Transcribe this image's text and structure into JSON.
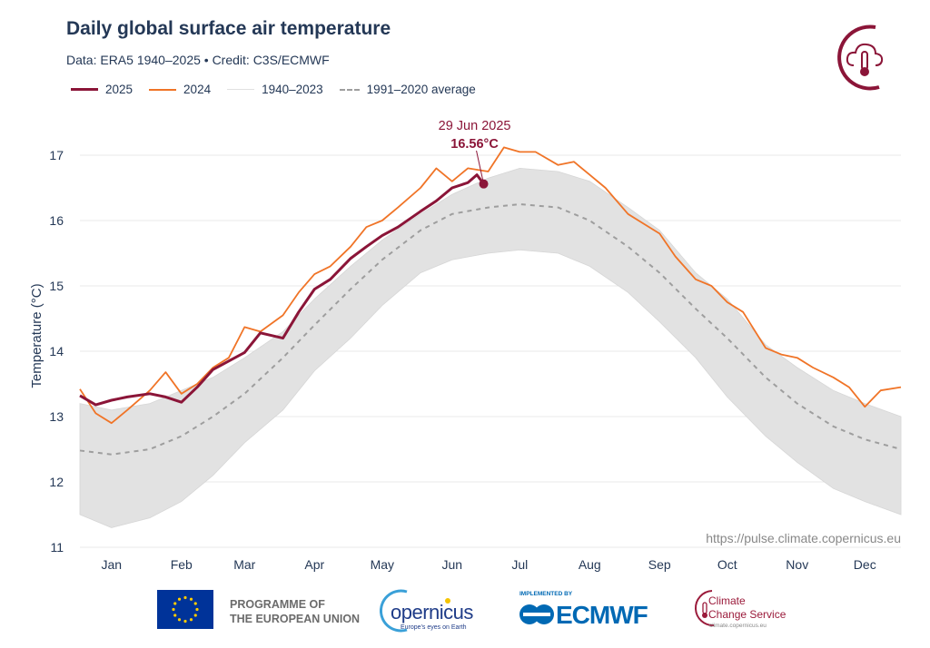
{
  "header": {
    "title": "Daily global surface air temperature",
    "subtitle": "Data: ERA5 1940–2025  •  Credit: C3S/ECMWF"
  },
  "legend": [
    {
      "label": "2025",
      "color": "#8b1538",
      "style": "solid-thick"
    },
    {
      "label": "2024",
      "color": "#f07427",
      "style": "solid"
    },
    {
      "label": "1940–2023",
      "color": "#e0e0e0",
      "style": "solid"
    },
    {
      "label": "1991–2020 average",
      "color": "#9e9e9e",
      "style": "dashed"
    }
  ],
  "source_url": "https://pulse.climate.copernicus.eu",
  "logos": {
    "eu_text_line1": "PROGRAMME OF",
    "eu_text_line2": "THE EUROPEAN UNION",
    "copernicus": "opernicus",
    "copernicus_tagline": "Europe's eyes on Earth",
    "implemented_by": "IMPLEMENTED BY",
    "ecmwf": "ECMWF",
    "c3s_line1": "Climate",
    "c3s_line2": "Change Service",
    "c3s_url": "climate.copernicus.eu"
  },
  "chart_data": {
    "type": "line",
    "title": "Daily global surface air temperature",
    "xlabel": "",
    "ylabel": "Temperature (°C)",
    "ylim": [
      11,
      17.5
    ],
    "yticks": [
      11,
      12,
      13,
      14,
      15,
      16,
      17
    ],
    "xticks": [
      "Jan",
      "Feb",
      "Mar",
      "Apr",
      "May",
      "Jun",
      "Jul",
      "Aug",
      "Sep",
      "Oct",
      "Nov",
      "Dec"
    ],
    "xrange": [
      "01-01",
      "12-31"
    ],
    "grid": "horizontal",
    "legend_placement": "top-left",
    "annotation": {
      "date_label": "29 Jun 2025",
      "value_label": "16.56°C",
      "x": "06-29",
      "y": 16.56,
      "color": "#8b1538"
    },
    "series": [
      {
        "name": "1940–2023",
        "kind": "range-band",
        "color": "#e2e2e2",
        "x": [
          "01-01",
          "01-15",
          "02-01",
          "02-15",
          "03-01",
          "03-15",
          "04-01",
          "04-15",
          "05-01",
          "05-15",
          "06-01",
          "06-15",
          "07-01",
          "07-15",
          "08-01",
          "08-15",
          "09-01",
          "09-15",
          "10-01",
          "10-15",
          "11-01",
          "11-15",
          "12-01",
          "12-15",
          "12-31"
        ],
        "lower": [
          11.5,
          11.3,
          11.45,
          11.7,
          12.1,
          12.6,
          13.1,
          13.7,
          14.2,
          14.7,
          15.2,
          15.4,
          15.5,
          15.55,
          15.5,
          15.3,
          14.9,
          14.45,
          13.9,
          13.3,
          12.7,
          12.3,
          11.9,
          11.7,
          11.5
        ],
        "upper": [
          13.2,
          13.1,
          13.2,
          13.4,
          13.6,
          13.9,
          14.3,
          14.8,
          15.3,
          15.7,
          16.1,
          16.4,
          16.65,
          16.8,
          16.75,
          16.6,
          16.2,
          15.85,
          15.2,
          14.8,
          14.1,
          13.75,
          13.4,
          13.2,
          13.0
        ]
      },
      {
        "name": "1991–2020 average",
        "color": "#9e9e9e",
        "dashed": true,
        "x": [
          "01-01",
          "01-15",
          "02-01",
          "02-15",
          "03-01",
          "03-15",
          "04-01",
          "04-15",
          "05-01",
          "05-15",
          "06-01",
          "06-15",
          "07-01",
          "07-15",
          "08-01",
          "08-15",
          "09-01",
          "09-15",
          "10-01",
          "10-15",
          "11-01",
          "11-15",
          "12-01",
          "12-15",
          "12-31"
        ],
        "values": [
          12.48,
          12.42,
          12.5,
          12.7,
          13.0,
          13.35,
          13.9,
          14.4,
          14.95,
          15.4,
          15.85,
          16.1,
          16.2,
          16.25,
          16.2,
          16.0,
          15.6,
          15.2,
          14.65,
          14.2,
          13.6,
          13.2,
          12.85,
          12.65,
          12.5
        ]
      },
      {
        "name": "2024",
        "color": "#f07427",
        "x": [
          "01-01",
          "01-08",
          "01-15",
          "01-22",
          "02-01",
          "02-08",
          "02-15",
          "02-22",
          "03-01",
          "03-08",
          "03-15",
          "03-22",
          "04-01",
          "04-08",
          "04-15",
          "04-22",
          "05-01",
          "05-08",
          "05-15",
          "05-22",
          "06-01",
          "06-08",
          "06-15",
          "06-22",
          "07-01",
          "07-08",
          "07-15",
          "07-22",
          "08-01",
          "08-08",
          "08-15",
          "08-22",
          "09-01",
          "09-08",
          "09-15",
          "09-22",
          "10-01",
          "10-08",
          "10-15",
          "10-22",
          "11-01",
          "11-08",
          "11-15",
          "11-22",
          "12-01",
          "12-08",
          "12-15",
          "12-22",
          "12-31"
        ],
        "values": [
          13.42,
          13.05,
          12.9,
          13.1,
          13.4,
          13.68,
          13.35,
          13.5,
          13.75,
          13.9,
          14.37,
          14.3,
          14.55,
          14.9,
          15.18,
          15.3,
          15.6,
          15.9,
          16.0,
          16.2,
          16.5,
          16.8,
          16.6,
          16.8,
          16.75,
          17.12,
          17.05,
          17.05,
          16.85,
          16.9,
          16.7,
          16.5,
          16.1,
          15.95,
          15.8,
          15.45,
          15.1,
          15.0,
          14.75,
          14.6,
          14.05,
          13.95,
          13.9,
          13.75,
          13.6,
          13.45,
          13.15,
          13.4,
          13.45
        ]
      },
      {
        "name": "2025",
        "color": "#8b1538",
        "x": [
          "01-01",
          "01-08",
          "01-15",
          "01-22",
          "02-01",
          "02-08",
          "02-15",
          "02-22",
          "03-01",
          "03-08",
          "03-15",
          "03-22",
          "04-01",
          "04-08",
          "04-15",
          "04-22",
          "05-01",
          "05-08",
          "05-15",
          "05-22",
          "06-01",
          "06-08",
          "06-15",
          "06-22",
          "06-26",
          "06-29"
        ],
        "values": [
          13.32,
          13.18,
          13.25,
          13.3,
          13.35,
          13.3,
          13.22,
          13.45,
          13.72,
          13.85,
          13.98,
          14.28,
          14.2,
          14.6,
          14.95,
          15.1,
          15.42,
          15.6,
          15.77,
          15.9,
          16.14,
          16.3,
          16.5,
          16.58,
          16.7,
          16.56
        ]
      }
    ]
  }
}
